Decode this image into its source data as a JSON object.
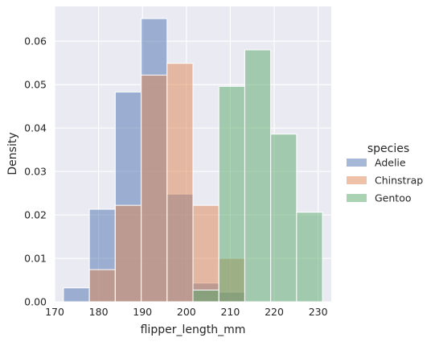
{
  "chart_data": {
    "type": "bar",
    "subtype": "histogram-density-overlay",
    "xlabel": "flipper_length_mm",
    "ylabel": "Density",
    "xlim": [
      170,
      233
    ],
    "ylim": [
      0,
      0.068
    ],
    "xticks": [
      170,
      180,
      190,
      200,
      210,
      220,
      230
    ],
    "xtick_labels": [
      "170",
      "180",
      "190",
      "200",
      "210",
      "220",
      "230"
    ],
    "yticks": [
      0.0,
      0.01,
      0.02,
      0.03,
      0.04,
      0.05,
      0.06
    ],
    "ytick_labels": [
      "0.00",
      "0.01",
      "0.02",
      "0.03",
      "0.04",
      "0.05",
      "0.06"
    ],
    "grid": true,
    "background": "#eaeaf2",
    "bin_edges": [
      172,
      177.9,
      183.8,
      189.7,
      195.6,
      201.5,
      207.4,
      213.3,
      219.2,
      225.1,
      231
    ],
    "legend": {
      "title": "species",
      "placement": "right"
    },
    "series": [
      {
        "name": "Adelie",
        "color": "#4c72b0",
        "values": [
          0.0032,
          0.0213,
          0.0483,
          0.0652,
          0.0248,
          0.0043,
          0.0022,
          0,
          0,
          0
        ]
      },
      {
        "name": "Chinstrap",
        "color": "#dd8452",
        "values": [
          0,
          0.0074,
          0.0222,
          0.0522,
          0.0549,
          0.0222,
          0.01,
          0,
          0,
          0
        ]
      },
      {
        "name": "Gentoo",
        "color": "#55a868",
        "values": [
          0,
          0,
          0,
          0,
          0,
          0.0027,
          0.0496,
          0.058,
          0.0386,
          0.0206
        ]
      }
    ]
  }
}
